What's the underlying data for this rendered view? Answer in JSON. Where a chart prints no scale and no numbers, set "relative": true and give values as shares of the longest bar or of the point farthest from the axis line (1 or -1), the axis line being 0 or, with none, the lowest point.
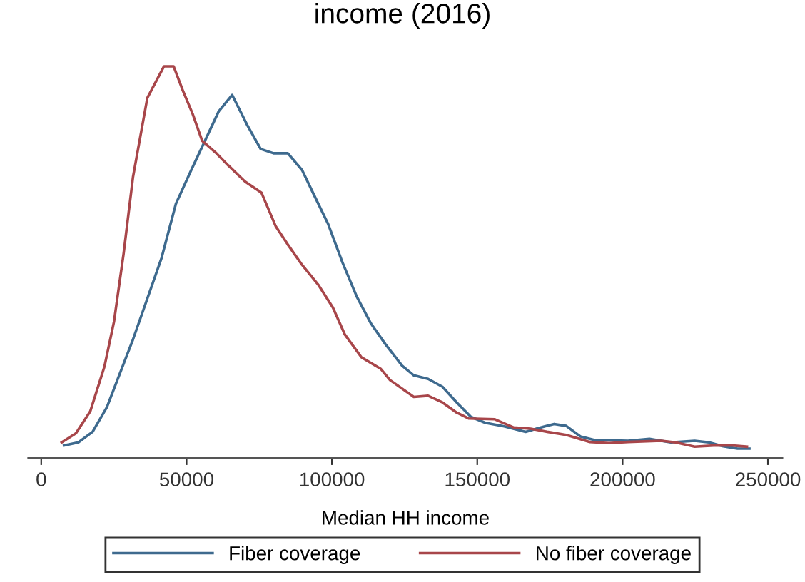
{
  "chart_data": {
    "type": "line",
    "title": "income (2016)",
    "xlabel": "Median HH income",
    "relative": true,
    "xlim": [
      -4500,
      255000
    ],
    "xticks": [
      0,
      50000,
      100000,
      150000,
      200000,
      250000
    ],
    "grid": false,
    "legend": "bottom",
    "marker": "none",
    "line_style": "solid",
    "series": [
      {
        "name": "Fiber coverage",
        "color": "#3e6a8e",
        "x": [
          7860,
          12770,
          17680,
          22590,
          31580,
          41400,
          46320,
          51230,
          61050,
          65670,
          70870,
          75490,
          79910,
          84820,
          89740,
          93810,
          98720,
          103640,
          108550,
          113460,
          118370,
          124120,
          128190,
          133100,
          138020,
          142930,
          147840,
          152750,
          159280,
          166650,
          170770,
          176470,
          180600,
          185510,
          190420,
          201870,
          209230,
          216600,
          224800,
          229710,
          234630,
          239540,
          243620
        ],
        "values": [
          0.032,
          0.04,
          0.067,
          0.13,
          0.303,
          0.511,
          0.649,
          0.729,
          0.885,
          0.927,
          0.85,
          0.789,
          0.778,
          0.778,
          0.735,
          0.672,
          0.597,
          0.499,
          0.412,
          0.343,
          0.291,
          0.236,
          0.211,
          0.202,
          0.182,
          0.142,
          0.105,
          0.09,
          0.081,
          0.067,
          0.076,
          0.087,
          0.082,
          0.055,
          0.046,
          0.044,
          0.049,
          0.04,
          0.044,
          0.04,
          0.03,
          0.024,
          0.024
        ]
      },
      {
        "name": "No fiber coverage",
        "color": "#a8464a",
        "x": [
          7020,
          11930,
          16850,
          21760,
          25050,
          28340,
          31580,
          36490,
          42240,
          45530,
          48770,
          52060,
          55350,
          60260,
          64340,
          70090,
          75780,
          80700,
          84820,
          89740,
          95430,
          100340,
          104470,
          110170,
          116750,
          119990,
          128190,
          133100,
          138020,
          142930,
          147010,
          156040,
          162570,
          168320,
          174020,
          180600,
          188750,
          195330,
          201870,
          213310,
          218220,
          224800,
          231340,
          237870,
          242780
        ],
        "values": [
          0.04,
          0.063,
          0.119,
          0.234,
          0.349,
          0.522,
          0.718,
          0.919,
          1.0,
          1.0,
          0.937,
          0.879,
          0.81,
          0.778,
          0.747,
          0.706,
          0.677,
          0.591,
          0.545,
          0.493,
          0.441,
          0.384,
          0.315,
          0.257,
          0.228,
          0.199,
          0.156,
          0.159,
          0.142,
          0.116,
          0.101,
          0.099,
          0.078,
          0.075,
          0.067,
          0.059,
          0.041,
          0.038,
          0.041,
          0.044,
          0.04,
          0.029,
          0.032,
          0.032,
          0.029
        ]
      }
    ]
  }
}
